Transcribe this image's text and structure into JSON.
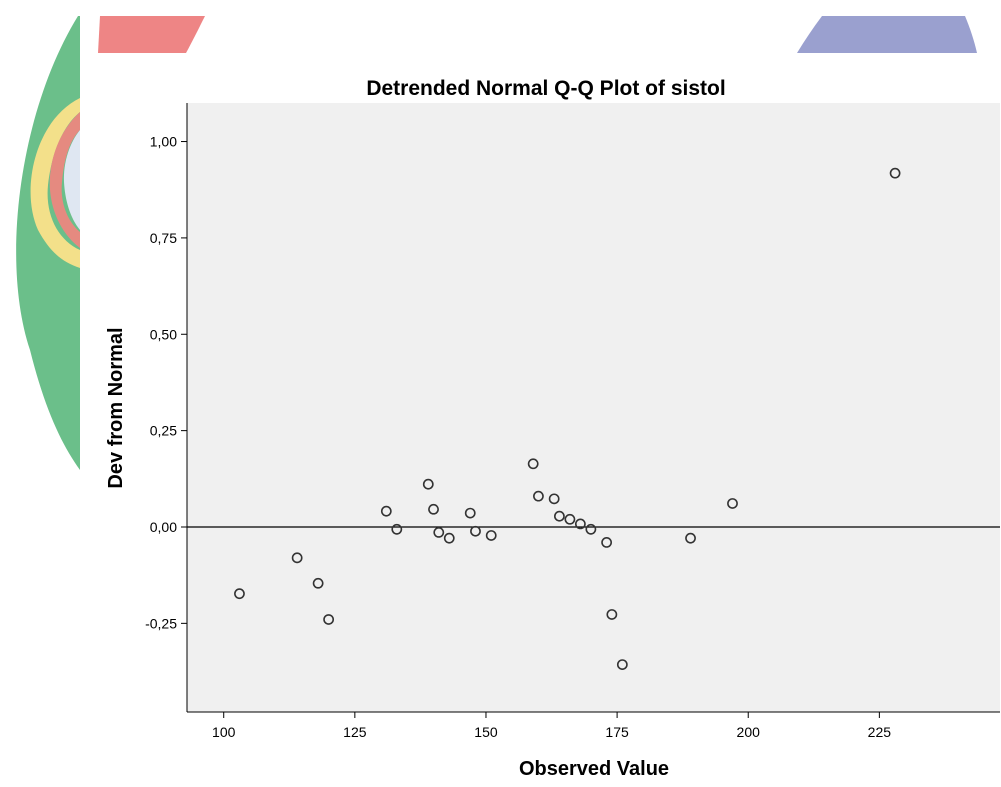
{
  "chart_data": {
    "type": "scatter",
    "title": "Detrended Normal Q-Q Plot of sistol",
    "xlabel": "Observed Value",
    "ylabel": "Dev from Normal",
    "xlim": [
      93,
      248
    ],
    "ylim": [
      -0.48,
      1.1
    ],
    "x_ticks": [
      100,
      125,
      150,
      175,
      200,
      225
    ],
    "x_tick_labels": [
      "100",
      "125",
      "150",
      "175",
      "200",
      "225"
    ],
    "y_ticks": [
      -0.25,
      0.0,
      0.25,
      0.5,
      0.75,
      1.0
    ],
    "y_tick_labels": [
      "-0,25",
      "0,00",
      "0,25",
      "0,50",
      "0,75",
      "1,00"
    ],
    "reference_line": 0,
    "grid": false,
    "points": [
      {
        "x": 103,
        "y": -0.173
      },
      {
        "x": 114,
        "y": -0.08
      },
      {
        "x": 118,
        "y": -0.146
      },
      {
        "x": 120,
        "y": -0.24
      },
      {
        "x": 131,
        "y": 0.041
      },
      {
        "x": 133,
        "y": -0.006
      },
      {
        "x": 139,
        "y": 0.111
      },
      {
        "x": 140,
        "y": 0.046
      },
      {
        "x": 141,
        "y": -0.014
      },
      {
        "x": 143,
        "y": -0.029
      },
      {
        "x": 147,
        "y": 0.036
      },
      {
        "x": 148,
        "y": -0.011
      },
      {
        "x": 151,
        "y": -0.022
      },
      {
        "x": 159,
        "y": 0.164
      },
      {
        "x": 160,
        "y": 0.08
      },
      {
        "x": 163,
        "y": 0.073
      },
      {
        "x": 164,
        "y": 0.028
      },
      {
        "x": 166,
        "y": 0.02
      },
      {
        "x": 168,
        "y": 0.008
      },
      {
        "x": 170,
        "y": -0.006
      },
      {
        "x": 173,
        "y": -0.04
      },
      {
        "x": 174,
        "y": -0.227
      },
      {
        "x": 176,
        "y": -0.357
      },
      {
        "x": 189,
        "y": -0.029
      },
      {
        "x": 197,
        "y": 0.061
      },
      {
        "x": 228,
        "y": 0.918
      }
    ]
  },
  "colors": {
    "plot_background": "#f0f0f0",
    "marker_stroke": "#333333",
    "axis": "#000000",
    "decor_green": "#6bbf8a",
    "decor_red": "#ee8585",
    "decor_blue": "#9aa0cf",
    "decor_yellow": "#f3e08a"
  }
}
